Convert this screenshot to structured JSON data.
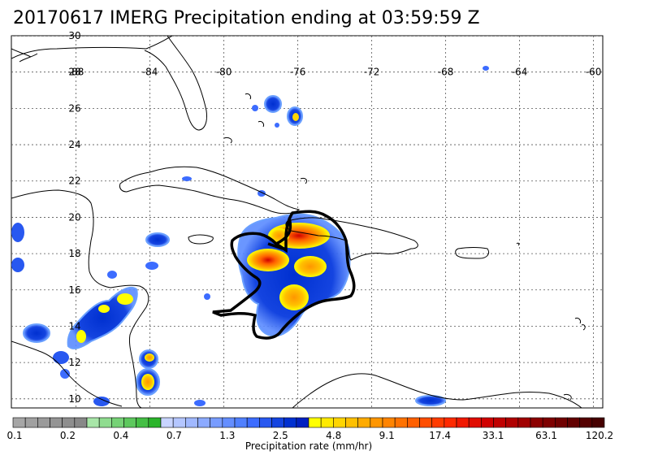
{
  "title": "20170617 IMERG Precipitation ending at 03:59:59 Z",
  "map": {
    "lon_range": [
      -91.5,
      -59.5
    ],
    "lat_range": [
      9.5,
      30
    ],
    "lon_ticks": [
      {
        "value": -88,
        "label": "-88"
      },
      {
        "value": -84,
        "label": "-84"
      },
      {
        "value": -80,
        "label": "-80"
      },
      {
        "value": -76,
        "label": "-76"
      },
      {
        "value": -72,
        "label": "-72"
      },
      {
        "value": -68,
        "label": "-68"
      },
      {
        "value": -64,
        "label": "-64"
      },
      {
        "value": -60,
        "label": "-60"
      }
    ],
    "lat_ticks": [
      {
        "value": 30,
        "label": "30"
      },
      {
        "value": 28,
        "label": "28"
      },
      {
        "value": 26,
        "label": "26"
      },
      {
        "value": 24,
        "label": "24"
      },
      {
        "value": 22,
        "label": "22"
      },
      {
        "value": 20,
        "label": "20"
      },
      {
        "value": 18,
        "label": "18"
      },
      {
        "value": 16,
        "label": "16"
      },
      {
        "value": 14,
        "label": "14"
      },
      {
        "value": 12,
        "label": "12"
      },
      {
        "value": 10,
        "label": "10"
      }
    ],
    "grid": true,
    "colors": {
      "coast": "#000000",
      "highlight": "#000000",
      "grid": "#555555"
    }
  },
  "colorbar": {
    "title": "Precipitation rate (mm/hr)",
    "labels": [
      "0.1",
      "0.2",
      "0.4",
      "0.7",
      "1.3",
      "2.5",
      "4.8",
      "9.1",
      "17.4",
      "33.1",
      "63.1",
      "120.2"
    ],
    "colors": [
      "#a6a6a6",
      "#a0a0a0",
      "#9a9a9a",
      "#949494",
      "#8e8e8e",
      "#888888",
      "#a8e6a8",
      "#8fdc8f",
      "#76d276",
      "#5dc85d",
      "#44be44",
      "#2bb42b",
      "#c8d4ff",
      "#b4c6ff",
      "#a0b8ff",
      "#8caaff",
      "#789cff",
      "#648eff",
      "#5080ff",
      "#3c6cff",
      "#2858f0",
      "#1444e0",
      "#0030d0",
      "#0020c0",
      "#ffff00",
      "#ffea00",
      "#ffd500",
      "#ffc000",
      "#ffab00",
      "#ff9600",
      "#ff8400",
      "#ff7200",
      "#ff6000",
      "#ff4e00",
      "#ff3c00",
      "#ff2a00",
      "#f01800",
      "#e00c00",
      "#d00000",
      "#c00000",
      "#b00000",
      "#a00000",
      "#8c0000",
      "#7e0000",
      "#700000",
      "#620000",
      "#540000",
      "#460000"
    ]
  }
}
